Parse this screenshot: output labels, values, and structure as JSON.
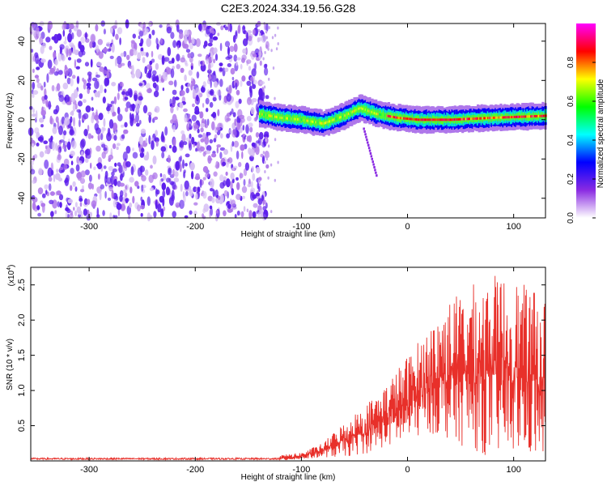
{
  "title": "C2E3.2024.334.19.56.G28",
  "chart_data": [
    {
      "type": "heatmap",
      "name": "spectrogram",
      "xlabel": "Height of straight line (km)",
      "ylabel": "Frequency (Hz)",
      "xlim": [
        -355,
        130
      ],
      "ylim": [
        -50,
        49
      ],
      "x_ticks": [
        -300,
        -200,
        -100,
        0,
        100
      ],
      "y_ticks": [
        -40,
        -20,
        0,
        20,
        40
      ],
      "colorbar": {
        "label": "Normalized spectral amplitude",
        "range": [
          0,
          1
        ],
        "ticks": [
          "0.0",
          "0.2",
          "0.4",
          "0.6",
          "0.8"
        ],
        "colors": [
          "#ffffff",
          "#8a2be2",
          "#0000ff",
          "#00ffff",
          "#00ff00",
          "#ffff00",
          "#ff0000",
          "#ff00ff"
        ]
      },
      "regions": [
        {
          "description": "broadband noise",
          "x_range": [
            -355,
            -140
          ],
          "freq_range": [
            -50,
            49
          ],
          "amplitude": "0.1-0.2"
        },
        {
          "description": "signal trace",
          "x_range": [
            -140,
            130
          ],
          "freq_center": [
            3,
            1,
            0,
            -2,
            2,
            6,
            3,
            1,
            0,
            0,
            1,
            2
          ],
          "x_at": [
            -140,
            -120,
            -100,
            -80,
            -60,
            -45,
            -30,
            -10,
            10,
            40,
            80,
            130
          ],
          "amplitude": "0.4-0.9"
        }
      ],
      "grid": false
    },
    {
      "type": "line",
      "name": "snr",
      "xlabel": "Height of straight line (km)",
      "ylabel": "SNR (10 * v/v)",
      "y_scale_note": "(x10^4)",
      "xlim": [
        -355,
        130
      ],
      "ylim": [
        0,
        2.75
      ],
      "x_ticks": [
        -300,
        -200,
        -100,
        0,
        100
      ],
      "y_ticks": [
        0.5,
        1.0,
        1.5,
        2.0,
        2.5
      ],
      "y_tick_labels": [
        "0.5",
        "1.0",
        "1.5",
        "2.0",
        "2.5"
      ],
      "series": [
        {
          "color": "#e8302a",
          "envelope_x": [
            -355,
            -120,
            -100,
            -80,
            -60,
            -40,
            -20,
            0,
            20,
            40,
            60,
            80,
            100,
            130
          ],
          "envelope_max": [
            0.06,
            0.08,
            0.12,
            0.25,
            0.55,
            0.8,
            1.1,
            1.5,
            1.9,
            2.3,
            2.5,
            2.65,
            2.6,
            2.3
          ],
          "envelope_min": [
            0.0,
            0.0,
            0.02,
            0.05,
            0.05,
            0.1,
            0.2,
            0.25,
            0.4,
            0.3,
            0.15,
            0.05,
            0.1,
            0.0
          ]
        }
      ],
      "grid": false
    }
  ]
}
